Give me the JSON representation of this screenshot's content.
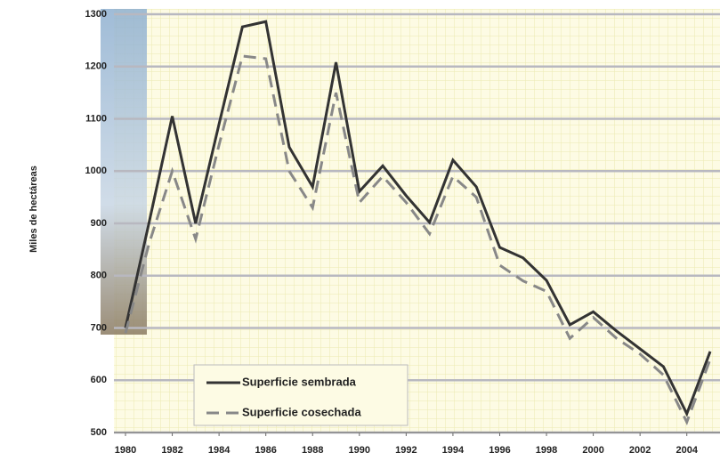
{
  "chart_data": {
    "type": "line",
    "y_label": "Miles de hectáreas",
    "x": [
      1980,
      1981,
      1982,
      1983,
      1984,
      1985,
      1986,
      1987,
      1988,
      1989,
      1990,
      1991,
      1992,
      1993,
      1994,
      1995,
      1996,
      1997,
      1998,
      1999,
      2000,
      2001,
      2002,
      2003,
      2004,
      2005
    ],
    "series": [
      {
        "name": "Superficie sembrada",
        "color": "#333333",
        "dash": false,
        "values": [
          700,
          900,
          1105,
          900,
          1090,
          1276,
          1286,
          1046,
          970,
          1208,
          961,
          1010,
          953,
          902,
          1021,
          970,
          854,
          834,
          791,
          706,
          731,
          694,
          660,
          626,
          536,
          655
        ]
      },
      {
        "name": "Superficie cosechada",
        "color": "#888888",
        "dash": true,
        "values": [
          690,
          860,
          1000,
          870,
          1050,
          1220,
          1215,
          1000,
          930,
          1150,
          940,
          990,
          940,
          880,
          990,
          950,
          820,
          790,
          770,
          680,
          720,
          680,
          650,
          610,
          520,
          640
        ]
      }
    ],
    "xlim": [
      1980,
      2005
    ],
    "xticks": [
      1980,
      1982,
      1984,
      1986,
      1988,
      1990,
      1992,
      1994,
      1996,
      1998,
      2000,
      2002,
      2004
    ],
    "ylim": [
      500,
      1300
    ],
    "yticks": [
      500,
      600,
      700,
      800,
      900,
      1000,
      1100,
      1200,
      1300
    ],
    "grid": true
  }
}
